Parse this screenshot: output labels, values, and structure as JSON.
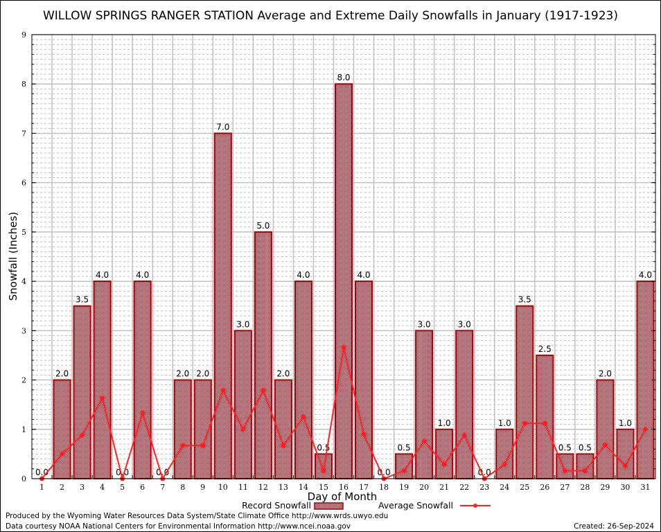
{
  "chart_data": {
    "type": "bar",
    "title": "WILLOW SPRINGS RANGER STATION Average and Extreme Daily Snowfalls in January (1917-1923)",
    "xlabel": "Day of Month",
    "ylabel": "Snowfall (Inches)",
    "ylim": [
      0,
      9
    ],
    "yticks": [
      "0",
      "1",
      "2",
      "3",
      "4",
      "5",
      "6",
      "7",
      "8",
      "9"
    ],
    "categories": [
      "1",
      "2",
      "3",
      "4",
      "5",
      "6",
      "7",
      "8",
      "9",
      "10",
      "11",
      "12",
      "13",
      "14",
      "15",
      "16",
      "17",
      "18",
      "19",
      "20",
      "21",
      "22",
      "23",
      "24",
      "25",
      "26",
      "27",
      "28",
      "29",
      "30",
      "31"
    ],
    "grid": true,
    "legend_placement": "bottom-center",
    "series": [
      {
        "name": "Record Snowfall",
        "type": "bar",
        "color": "#a00000",
        "values": [
          0.0,
          2.0,
          3.5,
          4.0,
          0.0,
          4.0,
          0.0,
          2.0,
          2.0,
          7.0,
          3.0,
          5.0,
          2.0,
          4.0,
          0.5,
          8.0,
          4.0,
          0.0,
          0.5,
          3.0,
          1.0,
          3.0,
          0.0,
          1.0,
          3.5,
          2.5,
          0.5,
          0.5,
          2.0,
          1.0,
          4.0
        ],
        "labels": [
          "0.0",
          "2.0",
          "3.5",
          "4.0",
          "0.0",
          "4.0",
          "0.0",
          "2.0",
          "2.0",
          "7.0",
          "3.0",
          "5.0",
          "2.0",
          "4.0",
          "0.5",
          "8.0",
          "4.0",
          "0.0",
          "0.5",
          "3.0",
          "1.0",
          "3.0",
          "0.0",
          "1.0",
          "3.5",
          "2.5",
          "0.5",
          "0.5",
          "2.0",
          "1.0",
          "4.0"
        ]
      },
      {
        "name": "Average Snowfall",
        "type": "line",
        "color": "#ff2020",
        "values": [
          0.0,
          0.5,
          0.88,
          1.63,
          0.0,
          1.33,
          0.0,
          0.67,
          0.67,
          1.79,
          1.0,
          1.79,
          0.67,
          1.25,
          0.16,
          2.66,
          0.9,
          0.0,
          0.16,
          0.76,
          0.29,
          0.88,
          0.0,
          0.29,
          1.12,
          1.12,
          0.16,
          0.16,
          0.68,
          0.26,
          1.0
        ]
      }
    ]
  },
  "footer": {
    "produced_by": "Produced by the Wyoming Water Resources Data System/State Climate Office http://www.wrds.uwyo.edu",
    "data_courtesy": "Data courtesy NOAA National Centers for Environmental Information http://www.ncei.noaa.gov",
    "created": "Created: 26-Sep-2024"
  }
}
